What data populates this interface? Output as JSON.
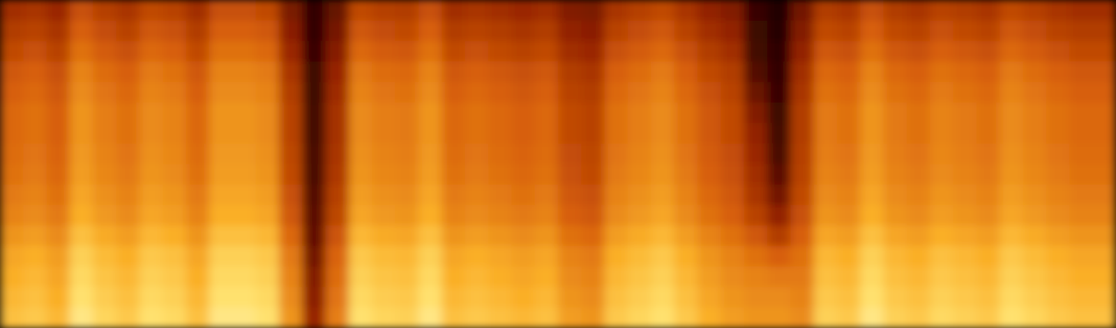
{
  "chart_data": {
    "type": "heatmap",
    "tick_labels": false,
    "zlim": [
      0,
      100
    ],
    "cells": [
      [
        48,
        50,
        46,
        58,
        53,
        50,
        56,
        54,
        48,
        58,
        58,
        56,
        38,
        18,
        33,
        56,
        53,
        52,
        58,
        48,
        50,
        48,
        46,
        48,
        40,
        38,
        50,
        53,
        56,
        50,
        44,
        40,
        20,
        12,
        36,
        52,
        50,
        58,
        52,
        50,
        54,
        52,
        50,
        56,
        53,
        50,
        48,
        48
      ],
      [
        52,
        54,
        50,
        62,
        57,
        54,
        60,
        58,
        52,
        62,
        62,
        60,
        42,
        18,
        37,
        60,
        57,
        56,
        62,
        52,
        54,
        52,
        50,
        52,
        44,
        42,
        54,
        57,
        60,
        54,
        48,
        44,
        22,
        14,
        40,
        56,
        54,
        62,
        56,
        54,
        58,
        56,
        54,
        60,
        57,
        54,
        52,
        52
      ],
      [
        56,
        58,
        54,
        66,
        61,
        58,
        64,
        62,
        56,
        66,
        66,
        64,
        46,
        20,
        41,
        64,
        61,
        60,
        66,
        56,
        58,
        56,
        54,
        56,
        48,
        46,
        58,
        61,
        64,
        58,
        52,
        48,
        24,
        16,
        44,
        60,
        58,
        66,
        60,
        58,
        62,
        60,
        58,
        64,
        61,
        58,
        56,
        56
      ],
      [
        60,
        62,
        58,
        70,
        65,
        62,
        68,
        66,
        60,
        70,
        70,
        68,
        50,
        22,
        45,
        68,
        65,
        64,
        70,
        60,
        62,
        60,
        58,
        60,
        52,
        50,
        62,
        65,
        68,
        62,
        56,
        52,
        28,
        18,
        48,
        64,
        62,
        70,
        64,
        62,
        66,
        64,
        62,
        68,
        65,
        62,
        60,
        60
      ],
      [
        62,
        64,
        60,
        72,
        67,
        64,
        70,
        68,
        62,
        72,
        72,
        70,
        52,
        22,
        47,
        70,
        67,
        66,
        72,
        62,
        64,
        62,
        60,
        62,
        54,
        52,
        64,
        67,
        70,
        64,
        58,
        54,
        34,
        20,
        50,
        66,
        64,
        72,
        66,
        64,
        68,
        66,
        64,
        70,
        67,
        64,
        62,
        62
      ],
      [
        64,
        66,
        62,
        74,
        69,
        66,
        72,
        70,
        64,
        74,
        74,
        72,
        54,
        24,
        49,
        72,
        69,
        68,
        74,
        64,
        66,
        64,
        62,
        64,
        56,
        54,
        66,
        69,
        72,
        66,
        60,
        56,
        40,
        22,
        52,
        68,
        66,
        74,
        68,
        66,
        70,
        68,
        66,
        72,
        69,
        66,
        64,
        64
      ],
      [
        64,
        66,
        62,
        74,
        69,
        66,
        72,
        70,
        64,
        74,
        74,
        72,
        54,
        24,
        49,
        72,
        69,
        68,
        74,
        64,
        66,
        64,
        62,
        64,
        56,
        54,
        66,
        69,
        72,
        66,
        60,
        56,
        44,
        24,
        52,
        68,
        66,
        74,
        68,
        66,
        70,
        68,
        66,
        72,
        69,
        66,
        64,
        64
      ],
      [
        65,
        67,
        63,
        75,
        70,
        67,
        73,
        71,
        65,
        75,
        75,
        73,
        55,
        26,
        50,
        73,
        70,
        69,
        75,
        65,
        67,
        65,
        63,
        65,
        57,
        55,
        67,
        70,
        73,
        67,
        61,
        57,
        46,
        26,
        53,
        69,
        67,
        75,
        69,
        67,
        71,
        69,
        67,
        73,
        70,
        67,
        65,
        65
      ],
      [
        66,
        68,
        64,
        76,
        71,
        68,
        74,
        72,
        66,
        76,
        76,
        74,
        56,
        26,
        51,
        74,
        71,
        70,
        76,
        66,
        68,
        66,
        64,
        66,
        58,
        56,
        68,
        71,
        74,
        68,
        62,
        58,
        48,
        30,
        54,
        70,
        68,
        76,
        70,
        68,
        72,
        70,
        68,
        74,
        71,
        68,
        66,
        66
      ],
      [
        68,
        70,
        66,
        78,
        73,
        70,
        76,
        74,
        68,
        78,
        78,
        76,
        58,
        28,
        53,
        76,
        73,
        72,
        78,
        68,
        70,
        68,
        66,
        68,
        60,
        58,
        70,
        73,
        76,
        70,
        64,
        60,
        50,
        36,
        56,
        72,
        70,
        78,
        72,
        70,
        74,
        72,
        70,
        76,
        73,
        70,
        68,
        68
      ],
      [
        70,
        72,
        68,
        80,
        75,
        72,
        78,
        76,
        70,
        80,
        80,
        78,
        60,
        30,
        55,
        78,
        75,
        74,
        80,
        70,
        72,
        70,
        68,
        70,
        62,
        60,
        72,
        75,
        78,
        72,
        66,
        62,
        54,
        44,
        58,
        74,
        72,
        80,
        74,
        72,
        76,
        74,
        72,
        78,
        75,
        72,
        70,
        70
      ],
      [
        74,
        76,
        72,
        84,
        79,
        76,
        82,
        80,
        74,
        84,
        84,
        82,
        64,
        32,
        59,
        82,
        79,
        78,
        84,
        74,
        76,
        74,
        72,
        74,
        66,
        64,
        76,
        79,
        82,
        76,
        70,
        66,
        60,
        52,
        62,
        78,
        76,
        84,
        78,
        76,
        80,
        78,
        76,
        82,
        79,
        76,
        74,
        74
      ],
      [
        78,
        80,
        76,
        88,
        83,
        80,
        86,
        84,
        78,
        88,
        88,
        86,
        68,
        36,
        63,
        86,
        83,
        82,
        88,
        78,
        80,
        78,
        76,
        78,
        70,
        68,
        80,
        83,
        86,
        80,
        74,
        70,
        66,
        62,
        66,
        82,
        80,
        88,
        82,
        80,
        84,
        82,
        80,
        86,
        83,
        80,
        78,
        78
      ],
      [
        80,
        82,
        78,
        90,
        85,
        82,
        88,
        86,
        80,
        90,
        90,
        88,
        70,
        40,
        65,
        88,
        85,
        84,
        90,
        80,
        82,
        80,
        78,
        80,
        72,
        70,
        82,
        85,
        88,
        82,
        76,
        72,
        70,
        68,
        68,
        84,
        82,
        90,
        84,
        82,
        86,
        84,
        82,
        88,
        85,
        82,
        80,
        80
      ],
      [
        82,
        84,
        80,
        92,
        87,
        84,
        90,
        88,
        82,
        92,
        92,
        90,
        72,
        42,
        67,
        90,
        87,
        86,
        92,
        82,
        84,
        82,
        80,
        82,
        74,
        72,
        84,
        87,
        90,
        84,
        78,
        74,
        72,
        72,
        70,
        86,
        84,
        92,
        86,
        84,
        88,
        86,
        84,
        90,
        87,
        84,
        82,
        82
      ],
      [
        84,
        86,
        82,
        94,
        89,
        86,
        92,
        90,
        84,
        94,
        94,
        92,
        74,
        45,
        69,
        92,
        89,
        88,
        94,
        84,
        86,
        84,
        82,
        84,
        76,
        74,
        86,
        89,
        92,
        86,
        80,
        76,
        74,
        74,
        72,
        88,
        86,
        94,
        88,
        86,
        90,
        88,
        86,
        92,
        89,
        86,
        84,
        84
      ]
    ]
  }
}
